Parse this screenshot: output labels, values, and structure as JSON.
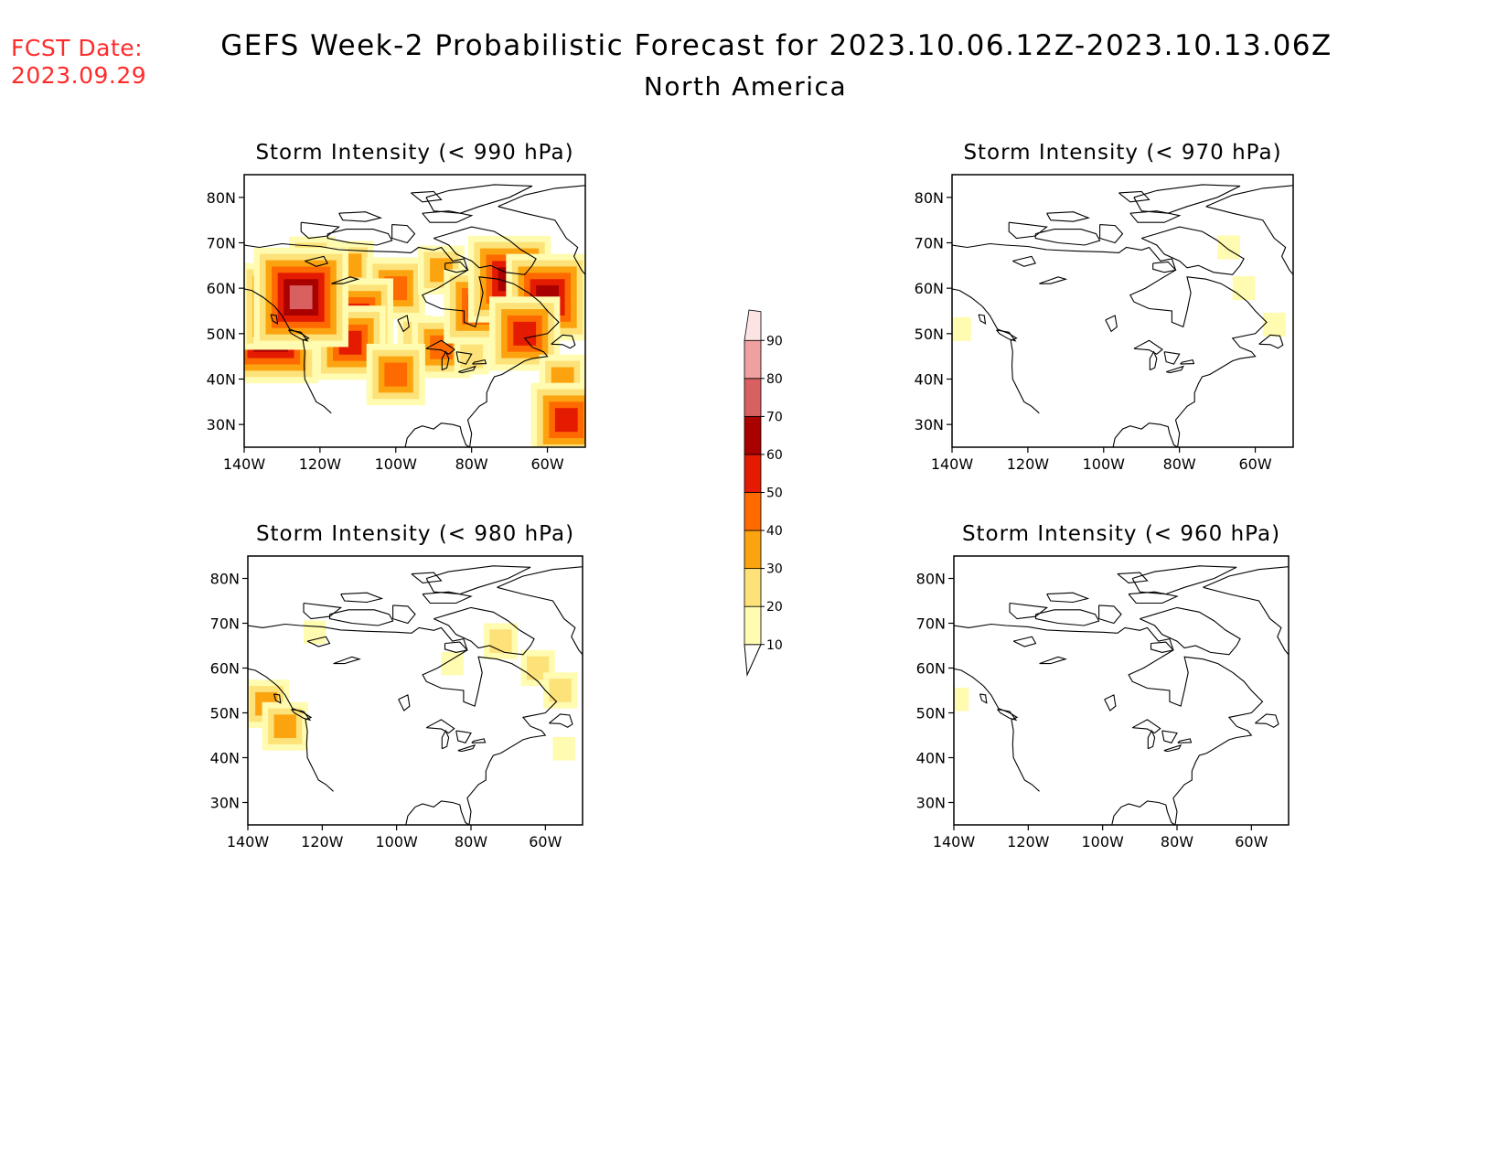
{
  "forecast_date_label": "FCST Date:",
  "forecast_date": "2023.09.29",
  "title": "GEFS Week-2 Probabilistic Forecast for 2023.10.06.12Z-2023.10.13.06Z",
  "region": "North America",
  "lat_labels": [
    "80N",
    "70N",
    "60N",
    "50N",
    "40N",
    "30N"
  ],
  "lon_labels": [
    "140W",
    "120W",
    "100W",
    "80W",
    "60W"
  ],
  "colorbar": {
    "levels": [
      "10",
      "20",
      "30",
      "40",
      "50",
      "60",
      "70",
      "80",
      "90"
    ],
    "colors": [
      "#fffbb0",
      "#fde27a",
      "#fca40f",
      "#fe6a00",
      "#e41b00",
      "#a90000",
      "#d86060",
      "#f0a0a0",
      "#fde4e4"
    ]
  },
  "panels": [
    {
      "title": "Storm Intensity (< 990 hPa)",
      "threshold_hPa": 990
    },
    {
      "title": "Storm Intensity (< 970 hPa)",
      "threshold_hPa": 970
    },
    {
      "title": "Storm Intensity (< 980 hPa)",
      "threshold_hPa": 980
    },
    {
      "title": "Storm Intensity (< 960 hPa)",
      "threshold_hPa": 960
    }
  ],
  "chart_data": {
    "type": "heatmap",
    "x_axis": {
      "label": "",
      "range": [
        -140,
        -50
      ],
      "ticks": [
        -140,
        -120,
        -100,
        -80,
        -60
      ]
    },
    "y_axis": {
      "label": "",
      "range": [
        25,
        85
      ],
      "ticks": [
        30,
        40,
        50,
        60,
        70,
        80
      ]
    },
    "value_unit": "%",
    "fields": [
      {
        "name": "Storm Intensity (< 990 hPa)",
        "blobs": [
          {
            "lon": -133,
            "lat": 50,
            "value": 75
          },
          {
            "lon": -130,
            "lat": 56,
            "value": 65
          },
          {
            "lon": -122,
            "lat": 66,
            "value": 35
          },
          {
            "lon": -112,
            "lat": 65,
            "value": 35
          },
          {
            "lon": -100,
            "lat": 60,
            "value": 40
          },
          {
            "lon": -110,
            "lat": 54,
            "value": 55
          },
          {
            "lon": -112,
            "lat": 48,
            "value": 50
          },
          {
            "lon": -95,
            "lat": 50,
            "value": 20
          },
          {
            "lon": -88,
            "lat": 47,
            "value": 45
          },
          {
            "lon": -88,
            "lat": 64,
            "value": 35
          },
          {
            "lon": -78,
            "lat": 56,
            "value": 50
          },
          {
            "lon": -70,
            "lat": 62,
            "value": 60
          },
          {
            "lon": -60,
            "lat": 58,
            "value": 65
          },
          {
            "lon": -66,
            "lat": 50,
            "value": 50
          },
          {
            "lon": -56,
            "lat": 40,
            "value": 30
          },
          {
            "lon": -55,
            "lat": 31,
            "value": 55
          },
          {
            "lon": -100,
            "lat": 41,
            "value": 45
          },
          {
            "lon": -80,
            "lat": 45,
            "value": 20
          },
          {
            "lon": -125,
            "lat": 58,
            "value": 70
          }
        ]
      },
      {
        "name": "Storm Intensity (< 970 hPa)",
        "blobs": [
          {
            "lon": -138,
            "lat": 51,
            "value": 15
          },
          {
            "lon": -67,
            "lat": 69,
            "value": 12
          },
          {
            "lon": -63,
            "lat": 60,
            "value": 15
          },
          {
            "lon": -55,
            "lat": 52,
            "value": 12
          }
        ]
      },
      {
        "name": "Storm Intensity (< 980 hPa)",
        "blobs": [
          {
            "lon": -135,
            "lat": 52,
            "value": 35
          },
          {
            "lon": -130,
            "lat": 47,
            "value": 30
          },
          {
            "lon": -72,
            "lat": 66,
            "value": 28
          },
          {
            "lon": -62,
            "lat": 60,
            "value": 20
          },
          {
            "lon": -56,
            "lat": 55,
            "value": 28
          },
          {
            "lon": -85,
            "lat": 61,
            "value": 15
          },
          {
            "lon": -122,
            "lat": 68,
            "value": 12
          },
          {
            "lon": -55,
            "lat": 42,
            "value": 12
          }
        ]
      },
      {
        "name": "Storm Intensity (< 960 hPa)",
        "blobs": [
          {
            "lon": -139,
            "lat": 53,
            "value": 10
          }
        ]
      }
    ]
  }
}
